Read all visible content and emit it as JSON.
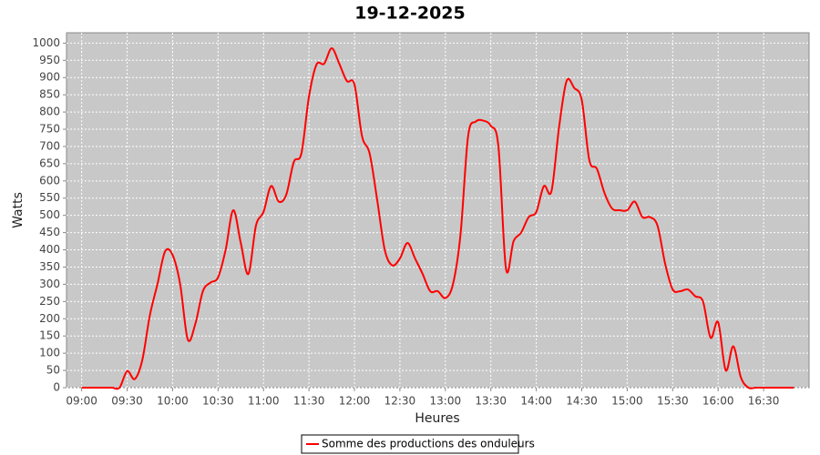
{
  "chart_data": {
    "type": "line",
    "title": "19-12-2025",
    "xlabel": "Heures",
    "ylabel": "Watts",
    "x": [
      "09:00",
      "09:05",
      "09:10",
      "09:15",
      "09:20",
      "09:25",
      "09:30",
      "09:35",
      "09:40",
      "09:45",
      "09:50",
      "09:55",
      "10:00",
      "10:05",
      "10:10",
      "10:15",
      "10:20",
      "10:25",
      "10:30",
      "10:35",
      "10:40",
      "10:45",
      "10:50",
      "10:55",
      "11:00",
      "11:05",
      "11:10",
      "11:15",
      "11:20",
      "11:25",
      "11:30",
      "11:35",
      "11:40",
      "11:45",
      "11:50",
      "11:55",
      "12:00",
      "12:05",
      "12:10",
      "12:15",
      "12:20",
      "12:25",
      "12:30",
      "12:35",
      "12:40",
      "12:45",
      "12:50",
      "12:55",
      "13:00",
      "13:05",
      "13:10",
      "13:15",
      "13:20",
      "13:25",
      "13:30",
      "13:35",
      "13:40",
      "13:45",
      "13:50",
      "13:55",
      "14:00",
      "14:05",
      "14:10",
      "14:15",
      "14:20",
      "14:25",
      "14:30",
      "14:35",
      "14:40",
      "14:45",
      "14:50",
      "14:55",
      "15:00",
      "15:05",
      "15:10",
      "15:15",
      "15:20",
      "15:25",
      "15:30",
      "15:35",
      "15:40",
      "15:45",
      "15:50",
      "15:55",
      "16:00",
      "16:05",
      "16:10",
      "16:15",
      "16:20",
      "16:25",
      "16:30",
      "16:35",
      "16:40",
      "16:45",
      "16:50"
    ],
    "series": [
      {
        "name": "Somme des productions des onduleurs",
        "color": "#ff0000",
        "values": [
          0,
          0,
          0,
          0,
          0,
          0,
          48,
          25,
          80,
          210,
          300,
          395,
          385,
          300,
          140,
          185,
          280,
          305,
          320,
          400,
          515,
          420,
          330,
          470,
          510,
          585,
          540,
          560,
          655,
          680,
          845,
          938,
          940,
          985,
          940,
          890,
          880,
          730,
          680,
          545,
          400,
          355,
          375,
          420,
          375,
          330,
          280,
          280,
          260,
          300,
          445,
          730,
          772,
          775,
          760,
          700,
          345,
          425,
          450,
          495,
          510,
          585,
          570,
          755,
          890,
          870,
          835,
          660,
          635,
          565,
          520,
          515,
          515,
          540,
          495,
          495,
          470,
          360,
          285,
          280,
          285,
          265,
          250,
          145,
          190,
          50,
          120,
          30,
          0,
          0,
          0,
          0,
          0,
          0,
          0
        ]
      }
    ],
    "xlim": [
      "08:50",
      "17:00"
    ],
    "xticks": [
      "09:00",
      "09:30",
      "10:00",
      "10:30",
      "11:00",
      "11:30",
      "12:00",
      "12:30",
      "13:00",
      "13:30",
      "14:00",
      "14:30",
      "15:00",
      "15:30",
      "16:00",
      "16:30"
    ],
    "ylim": [
      0,
      1030
    ],
    "yticks": [
      0,
      50,
      100,
      150,
      200,
      250,
      300,
      350,
      400,
      450,
      500,
      550,
      600,
      650,
      700,
      750,
      800,
      850,
      900,
      950,
      1000
    ],
    "grid": true
  }
}
